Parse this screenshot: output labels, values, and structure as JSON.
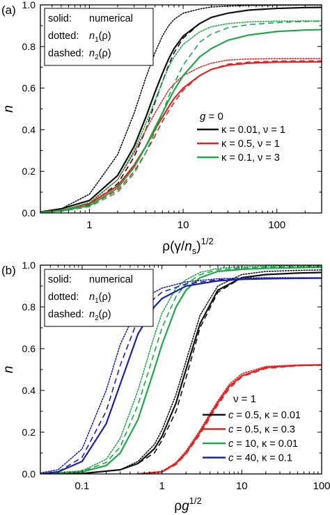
{
  "figure": {
    "panels": [
      {
        "panel_label": "(a)",
        "ylabel": "n",
        "xlabel": {
          "parts": [
            "ρ(γ/",
            "n",
            "s",
            ")",
            "1/2"
          ]
        },
        "notes": [
          {
            "left": "solid:",
            "right": "numerical"
          },
          {
            "left": "dotted:",
            "right": "n1(ρ)"
          },
          {
            "left": "dashed:",
            "right": "n2(ρ)"
          }
        ],
        "legend_title": "g = 0",
        "legend": [
          {
            "label": "κ = 0.01, ν = 1",
            "color": "#111111"
          },
          {
            "label": "κ = 0.5, ν = 1",
            "color": "#e32222"
          },
          {
            "label": "κ = 0.1, ν = 3",
            "color": "#1fa64a"
          }
        ]
      },
      {
        "panel_label": "(b)",
        "ylabel": "n",
        "xlabel": {
          "parts": [
            "ρ",
            "g",
            "1/2"
          ]
        },
        "notes": [
          {
            "left": "solid:",
            "right": "numerical"
          },
          {
            "left": "dotted:",
            "right": "n1(ρ)"
          },
          {
            "left": "dashed:",
            "right": "n2(ρ)"
          }
        ],
        "legend_title": "ν = 1",
        "legend": [
          {
            "label": "c = 0.5, κ = 0.01",
            "color": "#111111"
          },
          {
            "label": "c = 0.5, κ = 0.3",
            "color": "#e32222"
          },
          {
            "label": "c = 10, κ = 0.01",
            "color": "#1fa64a"
          },
          {
            "label": "c = 40, κ = 0.1",
            "color": "#1e22a0"
          }
        ]
      }
    ]
  },
  "chart_data": [
    {
      "type": "line",
      "panel": "(a)",
      "xscale": "log",
      "xlim": [
        0.3,
        300
      ],
      "ylim": [
        0.0,
        1.0
      ],
      "xticks": [
        1,
        10,
        100
      ],
      "xtick_labels": [
        "1",
        "10",
        "100"
      ],
      "yticks": [
        0.0,
        0.2,
        0.4,
        0.6,
        0.8,
        1.0
      ],
      "ytick_labels": [
        "0.0",
        "0.2",
        "0.4",
        "0.6",
        "0.8",
        "1.0"
      ],
      "grid": false,
      "series": [
        {
          "name": "κ = 0.01, ν = 1",
          "style": "solid",
          "color": "#111111",
          "x": [
            0.3,
            0.5,
            1,
            2,
            3,
            4,
            5,
            6,
            7,
            8,
            10,
            15,
            20,
            30,
            50,
            100,
            200,
            300
          ],
          "y": [
            0.005,
            0.02,
            0.06,
            0.18,
            0.32,
            0.46,
            0.58,
            0.67,
            0.74,
            0.79,
            0.85,
            0.91,
            0.94,
            0.96,
            0.975,
            0.983,
            0.987,
            0.988
          ]
        },
        {
          "style": "dotted",
          "color": "#111111",
          "x": [
            0.3,
            0.5,
            1,
            2,
            3,
            4,
            5,
            6,
            7,
            8,
            10,
            15,
            20,
            30,
            50,
            100,
            200,
            300
          ],
          "y": [
            0.005,
            0.02,
            0.09,
            0.28,
            0.48,
            0.65,
            0.77,
            0.85,
            0.9,
            0.93,
            0.96,
            0.98,
            0.99,
            0.994,
            0.997,
            0.998,
            0.999,
            0.999
          ]
        },
        {
          "style": "dashed",
          "color": "#111111",
          "x": [
            0.3,
            0.5,
            1,
            2,
            3,
            4,
            5,
            6,
            7,
            8,
            10,
            15,
            20,
            30,
            50,
            100,
            200,
            300
          ],
          "y": [
            0.004,
            0.012,
            0.04,
            0.14,
            0.27,
            0.4,
            0.53,
            0.63,
            0.71,
            0.77,
            0.84,
            0.91,
            0.94,
            0.96,
            0.975,
            0.983,
            0.987,
            0.988
          ]
        },
        {
          "name": "κ = 0.5, ν = 1",
          "style": "solid",
          "color": "#e32222",
          "x": [
            0.3,
            0.5,
            1,
            2,
            3,
            4,
            5,
            6,
            7,
            8,
            10,
            15,
            20,
            30,
            50,
            100,
            200,
            300
          ],
          "y": [
            0.004,
            0.012,
            0.045,
            0.13,
            0.23,
            0.32,
            0.4,
            0.46,
            0.51,
            0.55,
            0.6,
            0.66,
            0.69,
            0.71,
            0.72,
            0.725,
            0.726,
            0.726
          ]
        },
        {
          "style": "dotted",
          "color": "#e32222",
          "x": [
            0.3,
            0.5,
            1,
            2,
            3,
            4,
            5,
            6,
            7,
            8,
            10,
            15,
            20,
            30,
            50,
            100,
            200,
            300
          ],
          "y": [
            0.004,
            0.012,
            0.045,
            0.16,
            0.29,
            0.4,
            0.48,
            0.54,
            0.59,
            0.62,
            0.66,
            0.7,
            0.72,
            0.735,
            0.74,
            0.742,
            0.742,
            0.742
          ]
        },
        {
          "style": "dashed",
          "color": "#e32222",
          "x": [
            0.3,
            0.5,
            1,
            2,
            3,
            4,
            5,
            6,
            7,
            8,
            10,
            15,
            20,
            30,
            50,
            100,
            200,
            300
          ],
          "y": [
            0.003,
            0.01,
            0.035,
            0.11,
            0.2,
            0.29,
            0.37,
            0.44,
            0.49,
            0.53,
            0.59,
            0.66,
            0.69,
            0.715,
            0.725,
            0.73,
            0.731,
            0.731
          ]
        },
        {
          "name": "κ = 0.1, ν = 3",
          "style": "solid",
          "color": "#1fa64a",
          "x": [
            0.3,
            0.5,
            1,
            2,
            3,
            4,
            5,
            6,
            7,
            8,
            10,
            15,
            20,
            30,
            50,
            100,
            200,
            300
          ],
          "y": [
            0.003,
            0.01,
            0.035,
            0.12,
            0.22,
            0.32,
            0.41,
            0.48,
            0.54,
            0.59,
            0.66,
            0.75,
            0.79,
            0.83,
            0.855,
            0.872,
            0.879,
            0.881
          ]
        },
        {
          "style": "dotted",
          "color": "#1fa64a",
          "x": [
            0.3,
            0.5,
            1,
            2,
            3,
            4,
            5,
            6,
            7,
            8,
            10,
            15,
            20,
            30,
            50,
            100,
            200,
            300
          ],
          "y": [
            0.004,
            0.012,
            0.05,
            0.16,
            0.3,
            0.43,
            0.54,
            0.63,
            0.7,
            0.75,
            0.81,
            0.87,
            0.895,
            0.91,
            0.918,
            0.922,
            0.923,
            0.923
          ]
        },
        {
          "style": "dashed",
          "color": "#1fa64a",
          "x": [
            0.3,
            0.5,
            1,
            2,
            3,
            4,
            5,
            6,
            7,
            8,
            10,
            15,
            20,
            30,
            50,
            100,
            200,
            300
          ],
          "y": [
            0.003,
            0.008,
            0.03,
            0.1,
            0.19,
            0.29,
            0.39,
            0.48,
            0.56,
            0.62,
            0.71,
            0.82,
            0.86,
            0.89,
            0.905,
            0.915,
            0.92,
            0.922
          ]
        }
      ]
    },
    {
      "type": "line",
      "panel": "(b)",
      "xscale": "log",
      "xlim": [
        0.03,
        100
      ],
      "ylim": [
        0.0,
        1.0
      ],
      "xticks": [
        0.1,
        1,
        10,
        100
      ],
      "xtick_labels": [
        "0.1",
        "1",
        "10",
        "100"
      ],
      "yticks": [
        0.0,
        0.2,
        0.4,
        0.6,
        0.8,
        1.0
      ],
      "ytick_labels": [
        "0.0",
        "0.2",
        "0.4",
        "0.6",
        "0.8",
        "1.0"
      ],
      "grid": false,
      "series": [
        {
          "name": "c = 0.5, κ = 0.01",
          "style": "solid",
          "color": "#111111",
          "x": [
            0.03,
            0.1,
            0.3,
            0.5,
            0.8,
            1,
            1.5,
            2,
            3,
            5,
            10,
            20,
            50,
            100
          ],
          "y": [
            0.0,
            0.002,
            0.02,
            0.05,
            0.12,
            0.18,
            0.34,
            0.5,
            0.72,
            0.88,
            0.94,
            0.955,
            0.962,
            0.965
          ]
        },
        {
          "style": "dotted",
          "color": "#111111",
          "x": [
            0.03,
            0.1,
            0.3,
            0.5,
            0.8,
            1,
            1.5,
            2,
            3,
            5,
            10,
            20,
            50,
            100
          ],
          "y": [
            0.0,
            0.002,
            0.02,
            0.06,
            0.14,
            0.21,
            0.38,
            0.54,
            0.76,
            0.9,
            0.955,
            0.97,
            0.975,
            0.977
          ]
        },
        {
          "style": "dashed",
          "color": "#111111",
          "x": [
            0.03,
            0.1,
            0.3,
            0.5,
            0.8,
            1,
            1.5,
            2,
            3,
            5,
            10,
            20,
            50,
            100
          ],
          "y": [
            0.0,
            0.002,
            0.02,
            0.05,
            0.1,
            0.16,
            0.3,
            0.46,
            0.7,
            0.87,
            0.94,
            0.955,
            0.962,
            0.965
          ]
        },
        {
          "name": "c = 0.5, κ = 0.3",
          "style": "solid",
          "color": "#e32222",
          "x": [
            0.5,
            1,
            1.5,
            2,
            3,
            4,
            5,
            7,
            10,
            20,
            50,
            100
          ],
          "y": [
            0.0,
            0.01,
            0.05,
            0.1,
            0.2,
            0.28,
            0.34,
            0.42,
            0.47,
            0.51,
            0.52,
            0.522
          ]
        },
        {
          "style": "dotted",
          "color": "#e32222",
          "x": [
            0.5,
            1,
            1.5,
            2,
            3,
            4,
            5,
            7,
            10,
            20,
            50,
            100
          ],
          "y": [
            0.0,
            0.012,
            0.055,
            0.11,
            0.21,
            0.29,
            0.35,
            0.43,
            0.48,
            0.515,
            0.522,
            0.524
          ]
        },
        {
          "style": "dashed",
          "color": "#e32222",
          "x": [
            0.5,
            1,
            1.5,
            2,
            3,
            4,
            5,
            7,
            10,
            20,
            50,
            100
          ],
          "y": [
            0.0,
            0.009,
            0.045,
            0.095,
            0.19,
            0.27,
            0.33,
            0.41,
            0.465,
            0.505,
            0.518,
            0.52
          ]
        },
        {
          "name": "c = 10, κ = 0.01",
          "style": "solid",
          "color": "#1fa64a",
          "x": [
            0.03,
            0.1,
            0.2,
            0.3,
            0.5,
            0.8,
            1,
            1.5,
            2,
            3,
            5,
            10,
            20,
            50,
            100
          ],
          "y": [
            0.0,
            0.01,
            0.04,
            0.1,
            0.26,
            0.5,
            0.62,
            0.8,
            0.88,
            0.94,
            0.97,
            0.98,
            0.985,
            0.988,
            0.99
          ]
        },
        {
          "style": "dotted",
          "color": "#1fa64a",
          "x": [
            0.03,
            0.1,
            0.2,
            0.3,
            0.5,
            0.8,
            1,
            1.5,
            2,
            3,
            5,
            10,
            20,
            50,
            100
          ],
          "y": [
            0.0,
            0.015,
            0.07,
            0.17,
            0.4,
            0.66,
            0.77,
            0.89,
            0.93,
            0.965,
            0.985,
            0.992,
            0.995,
            0.997,
            0.998
          ]
        },
        {
          "style": "dashed",
          "color": "#1fa64a",
          "x": [
            0.03,
            0.1,
            0.2,
            0.3,
            0.5,
            0.8,
            1,
            1.5,
            2,
            3,
            5,
            10,
            20,
            50,
            100
          ],
          "y": [
            0.0,
            0.012,
            0.055,
            0.13,
            0.33,
            0.58,
            0.7,
            0.85,
            0.91,
            0.955,
            0.978,
            0.986,
            0.99,
            0.992,
            0.993
          ]
        },
        {
          "name": "c = 40, κ = 0.1",
          "style": "solid",
          "color": "#1e22a0",
          "x": [
            0.03,
            0.05,
            0.1,
            0.2,
            0.3,
            0.5,
            0.8,
            1,
            2,
            5,
            10,
            20,
            50,
            100
          ],
          "y": [
            0.0,
            0.01,
            0.06,
            0.24,
            0.43,
            0.67,
            0.8,
            0.84,
            0.9,
            0.925,
            0.932,
            0.935,
            0.937,
            0.938
          ]
        },
        {
          "style": "dotted",
          "color": "#1e22a0",
          "x": [
            0.03,
            0.05,
            0.1,
            0.2,
            0.3,
            0.5,
            0.8,
            1,
            2,
            5,
            10,
            20,
            50,
            100
          ],
          "y": [
            0.005,
            0.02,
            0.12,
            0.4,
            0.62,
            0.8,
            0.87,
            0.89,
            0.92,
            0.935,
            0.938,
            0.94,
            0.94,
            0.94
          ]
        },
        {
          "style": "dashed",
          "color": "#1e22a0",
          "x": [
            0.03,
            0.05,
            0.1,
            0.2,
            0.3,
            0.5,
            0.8,
            1,
            2,
            5,
            10,
            20,
            50,
            100
          ],
          "y": [
            0.0,
            0.01,
            0.08,
            0.3,
            0.52,
            0.74,
            0.84,
            0.87,
            0.91,
            0.93,
            0.935,
            0.937,
            0.938,
            0.938
          ]
        }
      ]
    }
  ]
}
